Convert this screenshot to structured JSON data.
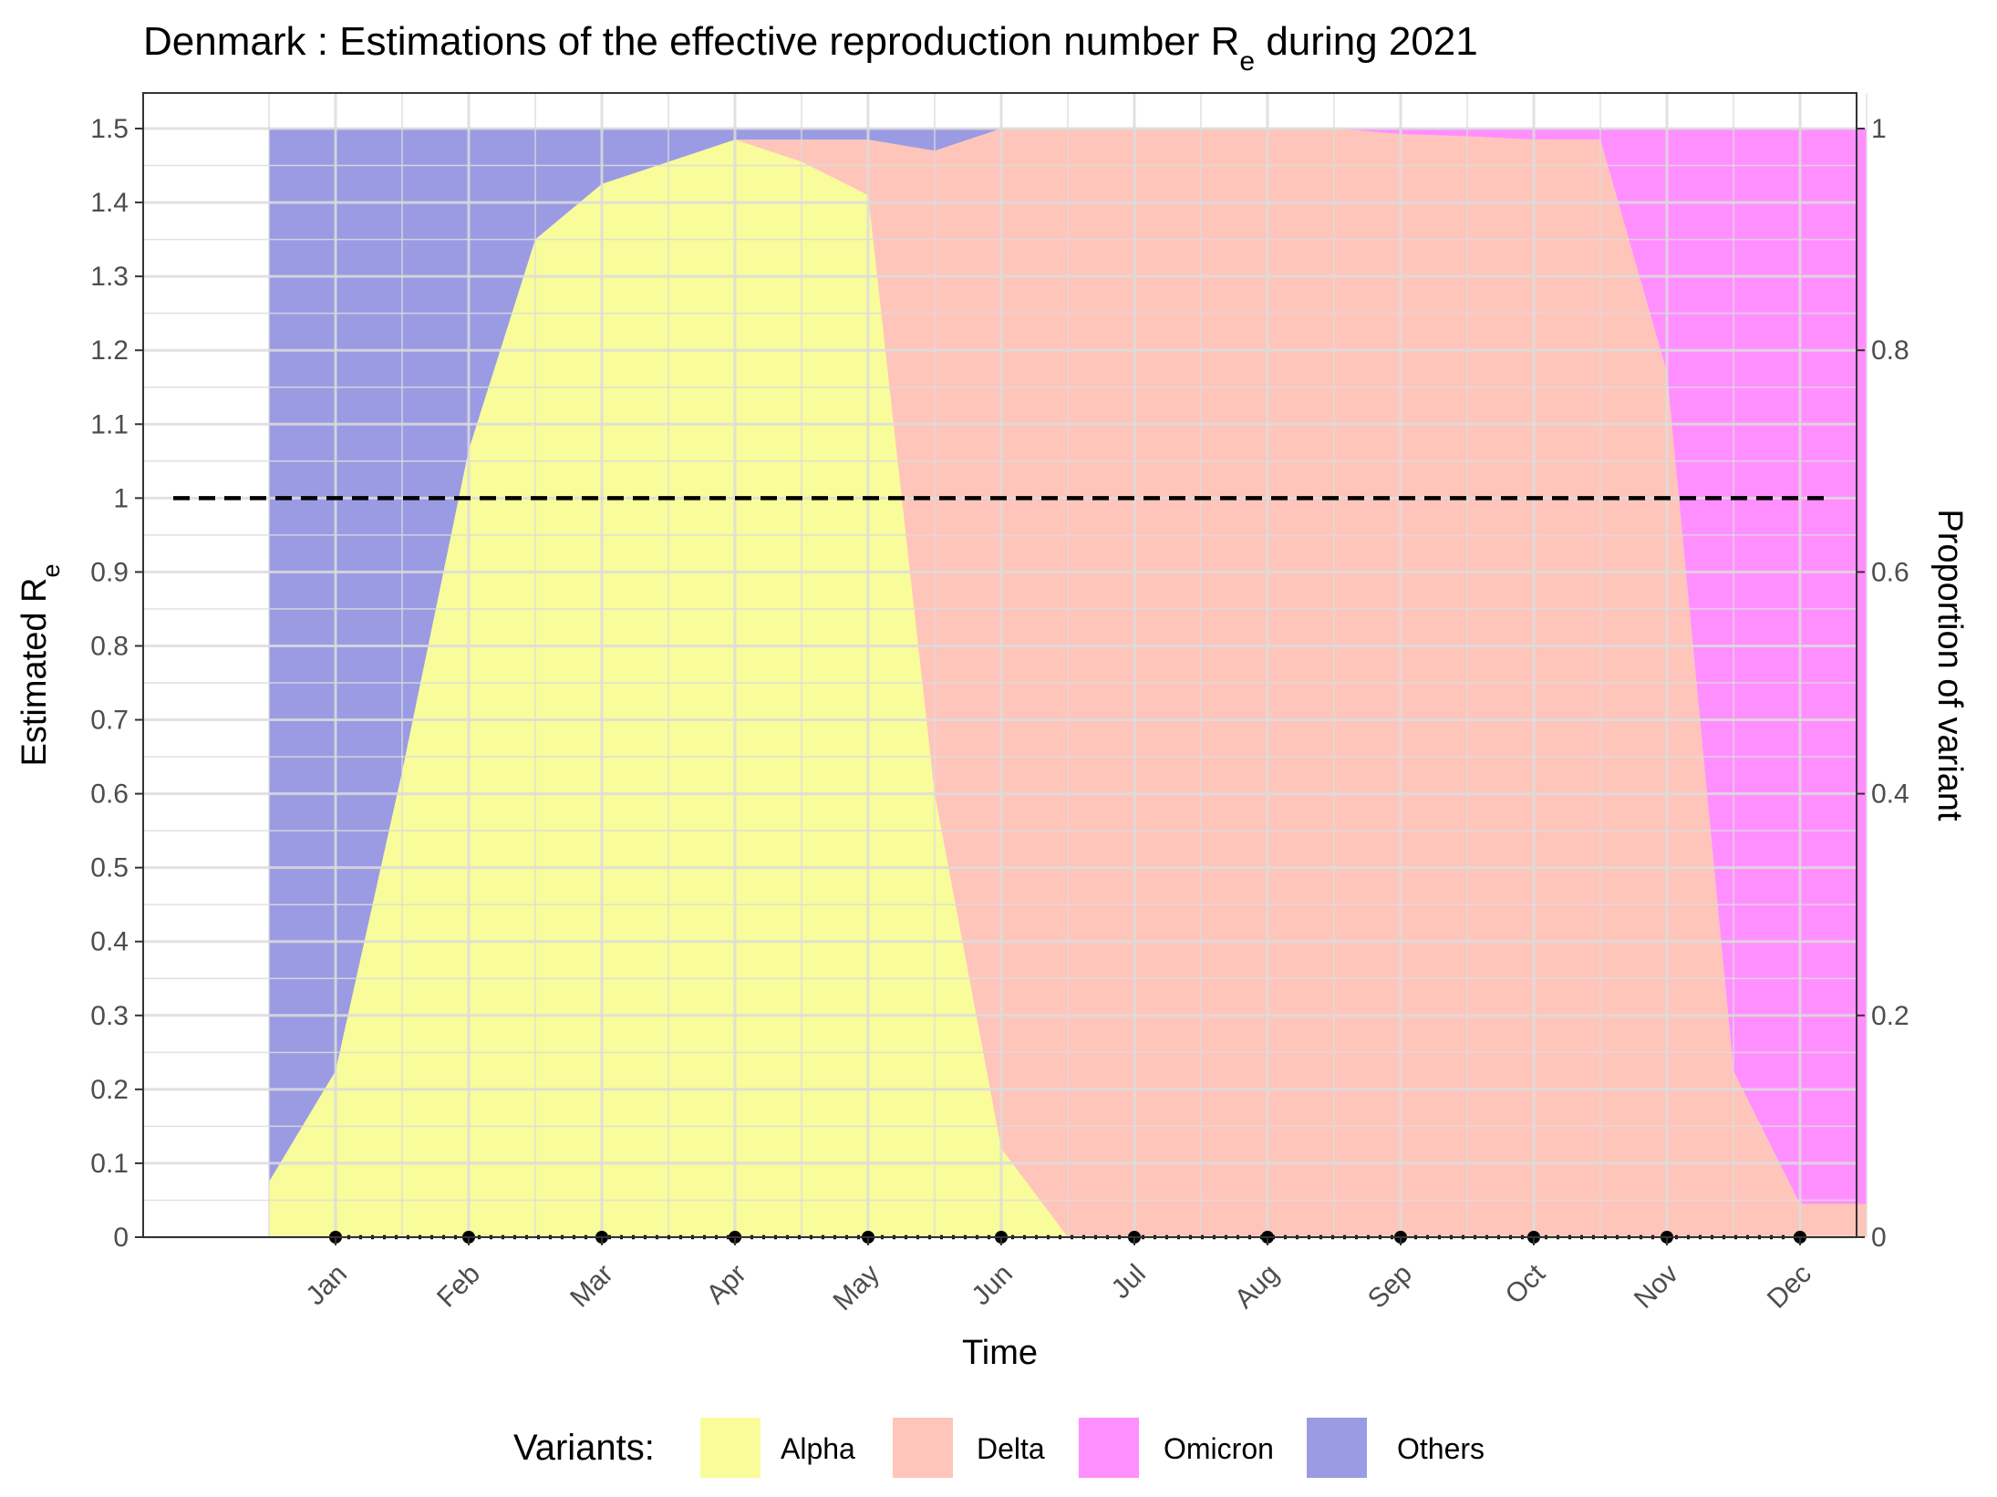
{
  "chart_data": {
    "type": "area",
    "title_main": "Denmark : Estimations of the effective reproduction number R",
    "title_sub": "e",
    "title_end": " during 2021",
    "xlabel": "Time",
    "ylabel_main": "Estimated R",
    "ylabel_sub": "e",
    "y2label": "Proportion of variant",
    "x_ticks": [
      "Jan",
      "Feb",
      "Mar",
      "Apr",
      "May",
      "Jun",
      "Jul",
      "Aug",
      "Sep",
      "Oct",
      "Nov",
      "Dec"
    ],
    "y_ticks": [
      "0",
      "0.1",
      "0.2",
      "0.3",
      "0.4",
      "0.5",
      "0.6",
      "0.7",
      "0.8",
      "0.9",
      "1",
      "1.1",
      "1.2",
      "1.3",
      "1.4",
      "1.5"
    ],
    "y2_ticks": [
      "0",
      "0.2",
      "0.4",
      "0.6",
      "0.8",
      "1"
    ],
    "ylim": [
      0,
      1.5
    ],
    "y2lim": [
      0,
      1
    ],
    "x_month_index": [
      0.5,
      1.0,
      1.5,
      2.0,
      2.5,
      3.0,
      3.5,
      4.0,
      4.5,
      5.0,
      5.5,
      6.0,
      6.5,
      7.0,
      7.5,
      8.0,
      8.5,
      9.0,
      9.5,
      10.0,
      10.5,
      11.0,
      11.5,
      12.0,
      12.5
    ],
    "series": [
      {
        "name": "Alpha",
        "color": "#F8FC9A",
        "values": [
          0.05,
          0.15,
          0.42,
          0.71,
          0.9,
          0.95,
          0.97,
          0.99,
          0.97,
          0.94,
          0.4,
          0.08,
          0,
          0,
          0,
          0,
          0,
          0,
          0,
          0,
          0,
          0,
          0,
          0,
          0
        ]
      },
      {
        "name": "Delta",
        "color": "#FFC5BA",
        "values": [
          0,
          0,
          0,
          0,
          0,
          0,
          0,
          0,
          0.02,
          0.05,
          0.58,
          0.92,
          1.0,
          1.0,
          1.0,
          1.0,
          1.0,
          0.995,
          0.993,
          0.99,
          0.99,
          0.78,
          0.15,
          0.03,
          0.03
        ]
      },
      {
        "name": "Omicron",
        "color": "#FF8FFF",
        "values": [
          0,
          0,
          0,
          0,
          0,
          0,
          0,
          0,
          0,
          0,
          0,
          0,
          0,
          0,
          0,
          0,
          0,
          0.005,
          0.007,
          0.01,
          0.01,
          0.22,
          0.85,
          0.97,
          0.97
        ]
      },
      {
        "name": "Others",
        "color": "#9B9BE3",
        "values": [
          0.95,
          0.85,
          0.58,
          0.29,
          0.1,
          0.05,
          0.03,
          0.01,
          0.01,
          0.01,
          0.02,
          0,
          0,
          0,
          0,
          0,
          0,
          0,
          0,
          0,
          0,
          0,
          0,
          0,
          0
        ]
      }
    ],
    "re_points": {
      "x": [
        1,
        2,
        3,
        4,
        5,
        6,
        7,
        8,
        9,
        10,
        11,
        12
      ],
      "y": [
        0,
        0,
        0,
        0,
        0,
        0,
        0,
        0,
        0,
        0,
        0,
        0
      ]
    },
    "threshold": 1,
    "legend": {
      "title": "Variants:",
      "position": "bottom",
      "items": [
        "Alpha",
        "Delta",
        "Omicron",
        "Others"
      ]
    },
    "grid": true
  }
}
